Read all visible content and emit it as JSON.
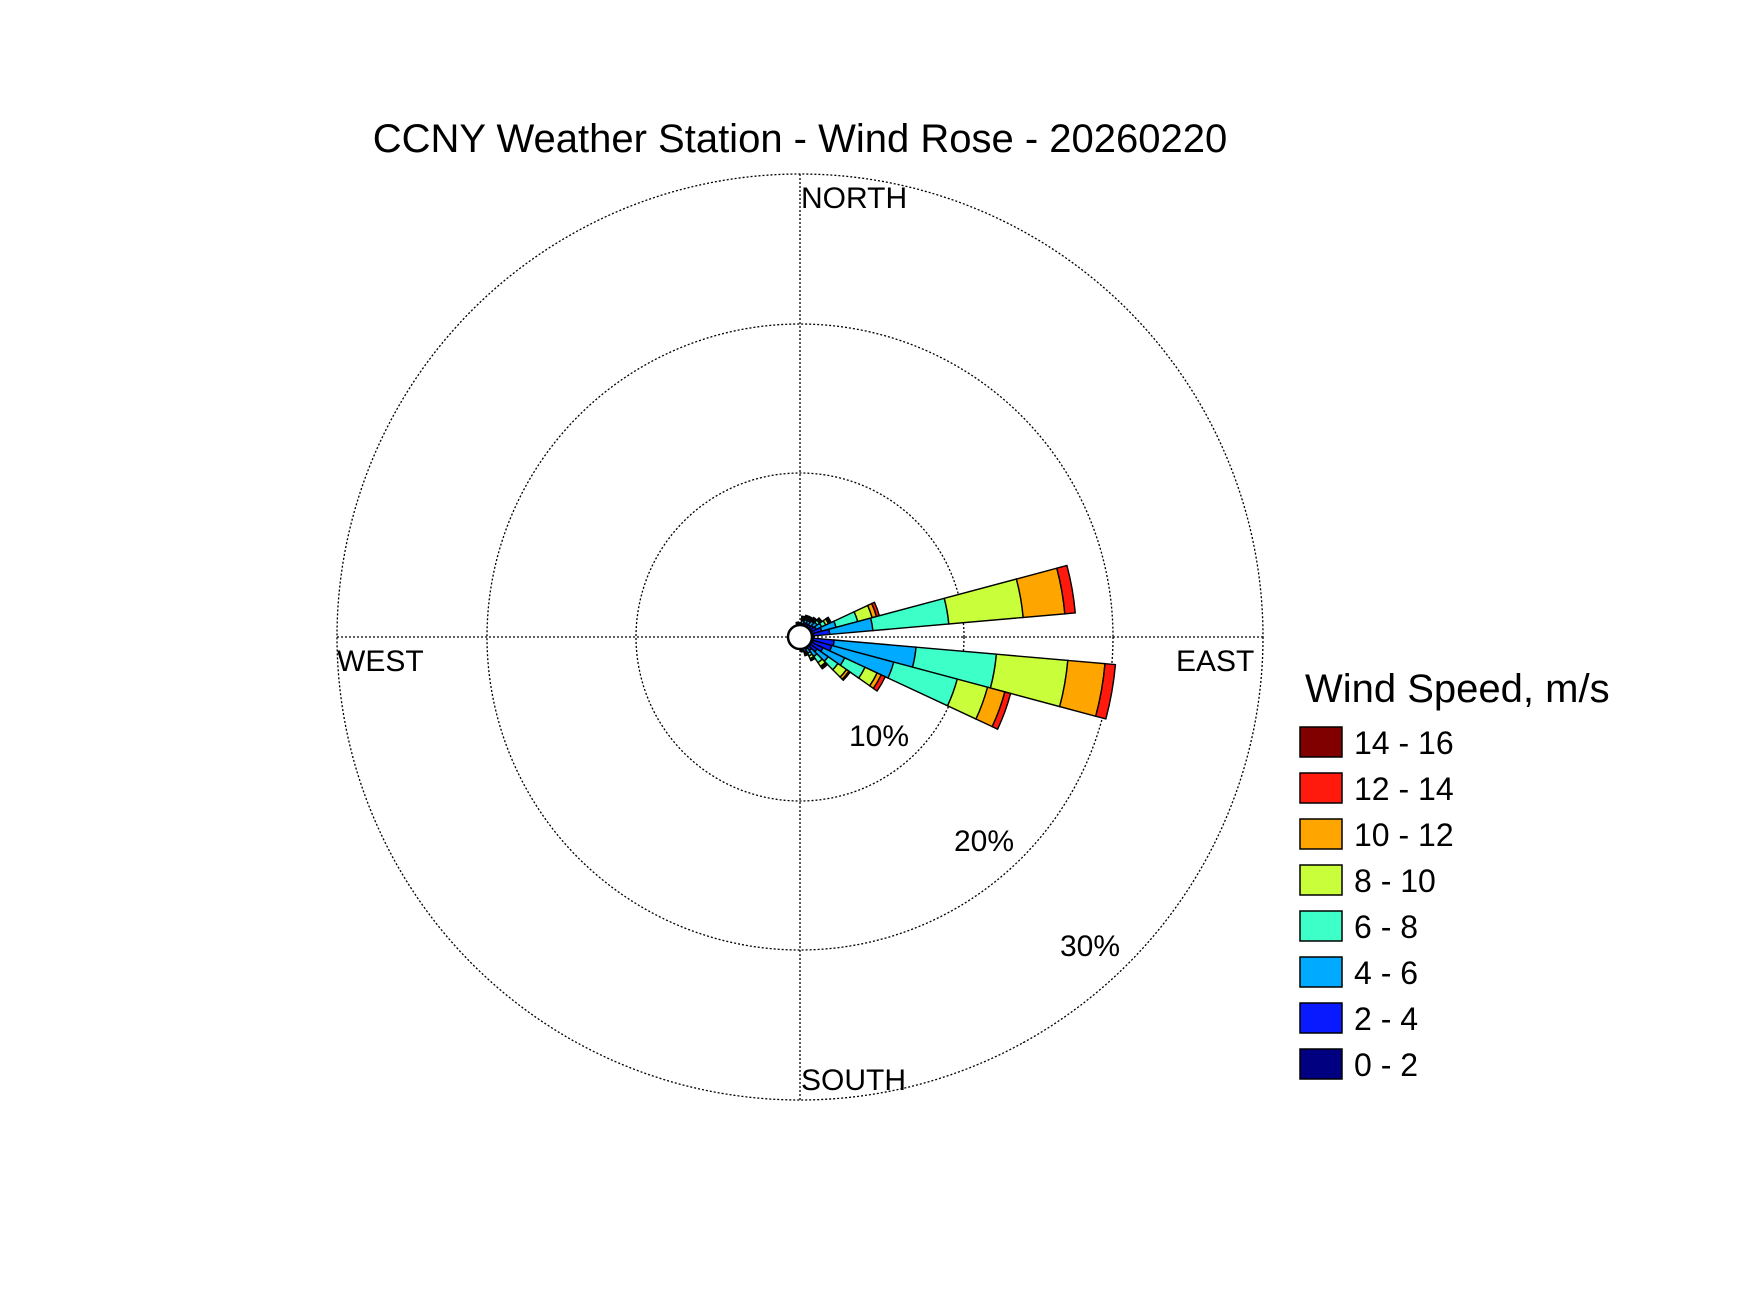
{
  "chart_data": {
    "type": "wind-rose",
    "title": "CCNY Weather Station - Wind Rose - 20260220",
    "directions": {
      "north": "NORTH",
      "south": "SOUTH",
      "east": "EAST",
      "west": "WEST"
    },
    "radial_ticks": [
      {
        "value": 10,
        "label": "10%"
      },
      {
        "value": 20,
        "label": "20%"
      },
      {
        "value": 30,
        "label": "30%"
      }
    ],
    "rmax": 31,
    "sector_width_deg": 10,
    "legend": {
      "title": "Wind Speed, m/s",
      "bins": [
        {
          "label": "14 - 16",
          "color": "#800000"
        },
        {
          "label": "12 - 14",
          "color": "#ff1a0d"
        },
        {
          "label": "10 - 12",
          "color": "#ffa500"
        },
        {
          "label": "8 - 10",
          "color": "#c8ff3a"
        },
        {
          "label": "6 - 8",
          "color": "#3dffc8"
        },
        {
          "label": "4 - 6",
          "color": "#00aaff"
        },
        {
          "label": "2 - 4",
          "color": "#0a1aff"
        },
        {
          "label": "0 - 2",
          "color": "#000080"
        }
      ]
    },
    "bin_order_inner_to_outer": [
      "0 - 2",
      "2 - 4",
      "4 - 6",
      "6 - 8",
      "8 - 10",
      "10 - 12",
      "12 - 14",
      "14 - 16"
    ],
    "series": [
      {
        "direction_deg": 10,
        "cumulative": [
          0.6,
          0.9,
          1.1,
          1.2,
          1.3,
          1.35,
          1.4,
          1.4
        ]
      },
      {
        "direction_deg": 20,
        "cumulative": [
          0.7,
          1.0,
          1.2,
          1.3,
          1.4,
          1.45,
          1.5,
          1.5
        ]
      },
      {
        "direction_deg": 30,
        "cumulative": [
          0.7,
          1.0,
          1.2,
          1.3,
          1.4,
          1.45,
          1.5,
          1.5
        ]
      },
      {
        "direction_deg": 40,
        "cumulative": [
          0.7,
          1.0,
          1.3,
          1.4,
          1.5,
          1.55,
          1.6,
          1.6
        ]
      },
      {
        "direction_deg": 50,
        "cumulative": [
          0.7,
          1.1,
          1.4,
          1.6,
          1.7,
          1.75,
          1.8,
          1.8
        ]
      },
      {
        "direction_deg": 60,
        "cumulative": [
          0.7,
          1.2,
          1.6,
          1.9,
          2.1,
          2.2,
          2.3,
          2.3
        ]
      },
      {
        "direction_deg": 70,
        "cumulative": [
          0.8,
          1.5,
          2.5,
          4.0,
          5.0,
          5.3,
          5.5,
          5.5
        ]
      },
      {
        "direction_deg": 80,
        "cumulative": [
          0.9,
          2.0,
          4.9,
          10.0,
          15.0,
          17.8,
          18.5,
          18.5
        ]
      },
      {
        "direction_deg": 100,
        "cumulative": [
          0.9,
          2.3,
          7.8,
          13.2,
          18.0,
          20.5,
          21.2,
          21.2
        ]
      },
      {
        "direction_deg": 110,
        "cumulative": [
          0.9,
          2.2,
          6.5,
          10.9,
          13.0,
          14.2,
          14.6,
          14.6
        ]
      },
      {
        "direction_deg": 120,
        "cumulative": [
          0.8,
          1.7,
          3.3,
          4.8,
          5.7,
          6.0,
          6.3,
          6.3
        ]
      },
      {
        "direction_deg": 130,
        "cumulative": [
          0.7,
          1.4,
          2.3,
          3.1,
          3.8,
          4.0,
          4.1,
          4.1
        ]
      },
      {
        "direction_deg": 140,
        "cumulative": [
          0.6,
          1.1,
          1.6,
          2.1,
          2.4,
          2.5,
          2.6,
          2.6
        ]
      },
      {
        "direction_deg": 150,
        "cumulative": [
          0.6,
          0.9,
          1.2,
          1.4,
          1.6,
          1.7,
          1.75,
          1.75
        ]
      },
      {
        "direction_deg": 160,
        "cumulative": [
          0.5,
          0.8,
          1.0,
          1.1,
          1.2,
          1.25,
          1.3,
          1.3
        ]
      },
      {
        "direction_deg": 170,
        "cumulative": [
          0.4,
          0.6,
          0.8,
          0.9,
          1.0,
          1.0,
          1.0,
          1.0
        ]
      },
      {
        "direction_deg": 190,
        "cumulative": [
          0.3,
          0.5,
          0.6,
          0.7,
          0.7,
          0.7,
          0.7,
          0.7
        ]
      },
      {
        "direction_deg": 350,
        "cumulative": [
          0.4,
          0.6,
          0.8,
          0.9,
          1.0,
          1.0,
          1.0,
          1.0
        ]
      }
    ]
  }
}
